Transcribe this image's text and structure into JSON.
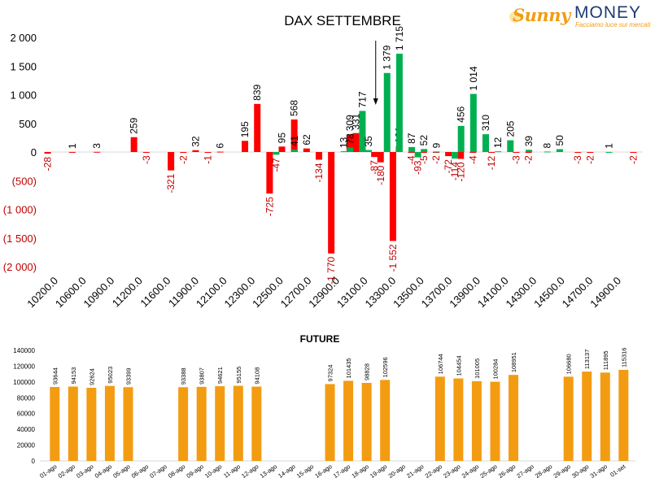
{
  "logo": {
    "word_a": "Sunny",
    "word_b": "MONEY",
    "tagline": "Facciamo luce sui mercati"
  },
  "colors": {
    "positive": "#00b050",
    "negative": "#ff0000",
    "future_bar": "#f39c12",
    "axis_text": "#000000",
    "negative_label": "#c00000"
  },
  "chart_data": [
    {
      "type": "bar",
      "title": "DAX SETTEMBRE",
      "xlabel": "",
      "ylabel": "",
      "ylim": [
        -2000,
        2000
      ],
      "yticks": [
        2000,
        1500,
        1000,
        500,
        0,
        -500,
        -1000,
        -1500,
        -2000
      ],
      "ytick_labels": [
        "2 000",
        "1 500",
        "1 000",
        "500",
        "0",
        "(500)",
        "(1 000)",
        "(1 500)",
        "(2 000)"
      ],
      "x_tick_labels": [
        "10200.0",
        "10600.0",
        "10900.0",
        "11200.0",
        "11600.0",
        "11900.0",
        "12100.0",
        "12300.0",
        "12500.0",
        "12700.0",
        "12900.0",
        "13100.0",
        "13300.0",
        "13500.0",
        "13700.0",
        "13900.0",
        "14100.0",
        "14300.0",
        "14500.0",
        "14700.0",
        "14900.0"
      ],
      "grid": false,
      "legend": "none",
      "annotation": "arrow pointing to 12900",
      "series": [
        {
          "color": "#ff0000",
          "values": [
            [
              10200,
              -28
            ],
            [
              10400,
              1
            ],
            [
              10600,
              3
            ],
            [
              10900,
              259
            ],
            [
              11000,
              -3
            ],
            [
              11200,
              -321
            ],
            [
              11300,
              -2
            ],
            [
              11400,
              32
            ],
            [
              11500,
              -1
            ],
            [
              11600,
              6
            ],
            [
              11800,
              195
            ],
            [
              11900,
              839
            ],
            [
              12000,
              -725
            ],
            [
              12100,
              95
            ],
            [
              12200,
              568
            ],
            [
              12300,
              62
            ],
            [
              12400,
              -134
            ],
            [
              12500,
              -1770
            ],
            [
              12650,
              309
            ],
            [
              12700,
              331
            ],
            [
              12850,
              -87
            ],
            [
              12900,
              -180
            ],
            [
              13000,
              -1552
            ],
            [
              13050,
              101
            ],
            [
              13150,
              -4
            ],
            [
              13250,
              -5
            ],
            [
              13350,
              -2
            ],
            [
              13450,
              -72
            ],
            [
              13550,
              -120
            ],
            [
              13650,
              -4
            ],
            [
              13800,
              -12
            ],
            [
              14000,
              -3
            ],
            [
              14100,
              -2
            ],
            [
              14500,
              -3
            ],
            [
              14600,
              -2
            ],
            [
              14950,
              -2
            ]
          ]
        },
        {
          "color": "#00b050",
          "values": [
            [
              12000,
              -47
            ],
            [
              12150,
              41
            ],
            [
              12550,
              13
            ],
            [
              12600,
              78
            ],
            [
              12700,
              717
            ],
            [
              12750,
              35
            ],
            [
              12900,
              1379
            ],
            [
              13000,
              1715
            ],
            [
              13100,
              87
            ],
            [
              13150,
              -93
            ],
            [
              13200,
              52
            ],
            [
              13300,
              9
            ],
            [
              13450,
              -114
            ],
            [
              13500,
              456
            ],
            [
              13600,
              1014
            ],
            [
              13700,
              310
            ],
            [
              13800,
              12
            ],
            [
              13900,
              205
            ],
            [
              14050,
              39
            ],
            [
              14200,
              8
            ],
            [
              14300,
              50
            ],
            [
              14700,
              1
            ]
          ]
        }
      ]
    },
    {
      "type": "bar",
      "title": "FUTURE",
      "xlabel": "",
      "ylabel": "",
      "ylim": [
        0,
        140000
      ],
      "yticks": [
        0,
        20000,
        40000,
        60000,
        80000,
        100000,
        120000,
        140000
      ],
      "grid": false,
      "legend": "none",
      "categories": [
        "01-ago",
        "02-ago",
        "03-ago",
        "04-ago",
        "05-ago",
        "06-ago",
        "07-ago",
        "08-ago",
        "09-ago",
        "10-ago",
        "11-ago",
        "12-ago",
        "13-ago",
        "14-ago",
        "15-ago",
        "16-ago",
        "17-ago",
        "18-ago",
        "19-ago",
        "20-ago",
        "21-ago",
        "22-ago",
        "23-ago",
        "24-ago",
        "25-ago",
        "26-ago",
        "27-ago",
        "28-ago",
        "29-ago",
        "30-ago",
        "31-ago",
        "01-set"
      ],
      "values": [
        93644,
        94153,
        92624,
        95023,
        93399,
        null,
        null,
        93388,
        93807,
        94621,
        95155,
        94108,
        null,
        null,
        null,
        97324,
        101435,
        98828,
        102596,
        null,
        null,
        106744,
        104454,
        101005,
        100284,
        108951,
        null,
        null,
        106680,
        113137,
        111895,
        115316
      ]
    }
  ]
}
